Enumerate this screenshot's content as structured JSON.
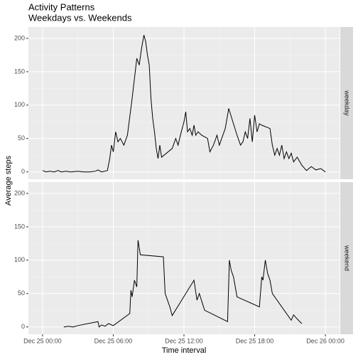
{
  "chart_data": [
    {
      "type": "line",
      "title": "Activity Patterns",
      "subtitle": "Weekdays vs. Weekends",
      "y_label": "Average steps",
      "facet": "weekday",
      "color": "#000000",
      "grid": true,
      "xlim": [
        -1.2,
        25.2
      ],
      "ylim": [
        -11,
        217
      ],
      "yticks": [
        0,
        50,
        100,
        150,
        200
      ],
      "x": [
        0,
        0.3,
        0.6,
        1,
        1.3,
        1.6,
        2,
        2.4,
        3,
        3.5,
        4,
        4.5,
        4.7,
        5,
        5.5,
        5.7,
        5.85,
        6,
        6.2,
        6.4,
        6.6,
        6.9,
        7.2,
        7.6,
        8.0,
        8.2,
        8.4,
        8.6,
        8.75,
        8.9,
        9.05,
        9.2,
        9.35,
        9.5,
        9.65,
        9.8,
        9.95,
        10.1,
        11.0,
        11.3,
        11.5,
        11.7,
        12.0,
        12.15,
        12.3,
        12.5,
        12.7,
        12.85,
        13.0,
        13.2,
        13.5,
        14.0,
        14.2,
        14.5,
        14.8,
        15.0,
        15.2,
        15.5,
        15.8,
        16.5,
        16.8,
        17.0,
        17.2,
        17.4,
        17.6,
        17.8,
        18.0,
        18.2,
        18.4,
        18.6,
        19.3,
        19.5,
        19.7,
        19.9,
        20.1,
        20.3,
        20.5,
        20.7,
        20.9,
        21.1,
        21.3,
        21.6,
        22.0,
        22.4,
        22.8,
        23.2,
        23.6,
        24.0
      ],
      "values": [
        2,
        0,
        1,
        0,
        2,
        0,
        1,
        0,
        1,
        0,
        0,
        1,
        3,
        0,
        2,
        20,
        40,
        30,
        60,
        45,
        50,
        40,
        55,
        110,
        170,
        160,
        185,
        205,
        195,
        175,
        160,
        110,
        80,
        60,
        35,
        20,
        40,
        22,
        35,
        50,
        40,
        55,
        75,
        90,
        60,
        65,
        55,
        70,
        55,
        60,
        55,
        50,
        30,
        40,
        55,
        40,
        50,
        65,
        95,
        55,
        40,
        45,
        60,
        50,
        80,
        45,
        85,
        60,
        72,
        70,
        65,
        40,
        25,
        35,
        25,
        40,
        20,
        30,
        20,
        28,
        15,
        22,
        10,
        2,
        8,
        3,
        5,
        0
      ]
    },
    {
      "type": "line",
      "facet": "weekend",
      "x_label": "Time interval",
      "color": "#000000",
      "grid": true,
      "xlim": [
        -1.2,
        25.2
      ],
      "ylim": [
        -11,
        217
      ],
      "yticks": [
        0,
        50,
        100,
        150,
        200
      ],
      "xticks": [
        {
          "value": 0,
          "label": "Dec 25 00:00"
        },
        {
          "value": 6,
          "label": "Dec 25 06:00"
        },
        {
          "value": 12,
          "label": "Dec 25 12:00"
        },
        {
          "value": 18,
          "label": "Dec 25 18:00"
        },
        {
          "value": 24,
          "label": "Dec 26 00:00"
        }
      ],
      "x": [
        1.8,
        2.2,
        2.6,
        3.0,
        4.7,
        4.8,
        5.0,
        5.3,
        5.6,
        6.0,
        7.4,
        7.5,
        7.6,
        7.8,
        8.0,
        8.1,
        8.3,
        10.25,
        10.4,
        10.6,
        10.8,
        11.0,
        12.85,
        13.1,
        13.3,
        13.75,
        15.7,
        15.85,
        16.0,
        16.2,
        16.5,
        18.4,
        18.6,
        18.7,
        18.9,
        19.1,
        19.3,
        19.5,
        21.1,
        21.3,
        21.6,
        22.0
      ],
      "values": [
        0,
        1,
        0,
        2,
        8,
        0,
        3,
        1,
        5,
        2,
        20,
        55,
        45,
        70,
        60,
        130,
        108,
        105,
        50,
        40,
        30,
        17,
        70,
        40,
        50,
        25,
        8,
        100,
        85,
        75,
        45,
        30,
        75,
        70,
        100,
        80,
        70,
        50,
        10,
        18,
        12,
        5
      ]
    }
  ]
}
